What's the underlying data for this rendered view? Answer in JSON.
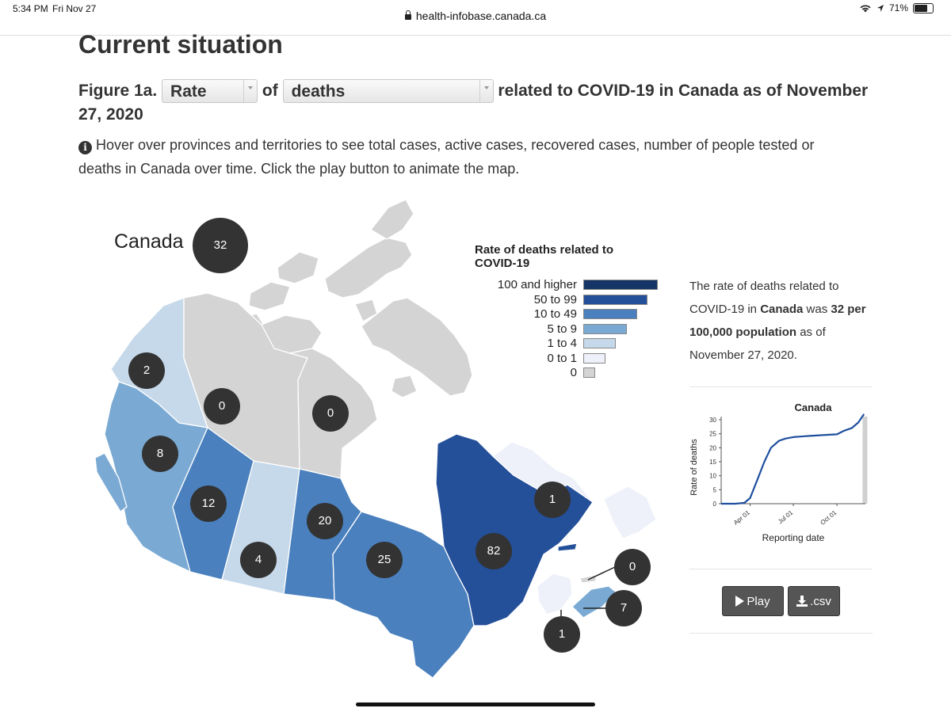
{
  "status": {
    "time": "5:34 PM",
    "date": "Fri Nov 27",
    "battery": "71%"
  },
  "browser": {
    "url": "health-infobase.canada.ca"
  },
  "page": {
    "title": "Current situation",
    "figure_prefix": "Figure 1a.",
    "rate_select": "Rate",
    "of_text": "of",
    "metric_select": "deaths",
    "figure_suffix": "related to COVID-19 in Canada as of November 27, 2020",
    "info_text": "Hover over provinces and territories to see total cases, active cases, recovered cases, number of people tested or deaths in Canada over time. Click the play button to animate the map."
  },
  "map": {
    "national": {
      "label": "Canada",
      "value": "32"
    },
    "regions": [
      {
        "name": "Yukon",
        "value": "2",
        "color": "#c6d9ea"
      },
      {
        "name": "Northwest Territories",
        "value": "0",
        "color": "#d4d4d4"
      },
      {
        "name": "Nunavut",
        "value": "0",
        "color": "#d4d4d4"
      },
      {
        "name": "British Columbia",
        "value": "8",
        "color": "#7aaad3"
      },
      {
        "name": "Alberta",
        "value": "12",
        "color": "#4a80be"
      },
      {
        "name": "Saskatchewan",
        "value": "4",
        "color": "#c6d9ea"
      },
      {
        "name": "Manitoba",
        "value": "20",
        "color": "#4a80be"
      },
      {
        "name": "Ontario",
        "value": "25",
        "color": "#4a80be"
      },
      {
        "name": "Quebec",
        "value": "82",
        "color": "#244f99"
      },
      {
        "name": "Newfoundland and Labrador",
        "value": "1",
        "color": "#eef0fa"
      },
      {
        "name": "Prince Edward Island",
        "value": "0",
        "color": "#d4d4d4"
      },
      {
        "name": "Nova Scotia",
        "value": "7",
        "color": "#7aaad3"
      },
      {
        "name": "New Brunswick",
        "value": "1",
        "color": "#eef0fa"
      }
    ]
  },
  "legend": {
    "title": "Rate of deaths related to COVID-19",
    "items": [
      {
        "label": "100 and higher",
        "color": "#143566",
        "fraction": 1.0
      },
      {
        "label": "50 to 99",
        "color": "#244f99",
        "fraction": 0.86
      },
      {
        "label": "10 to 49",
        "color": "#4a80be",
        "fraction": 0.72
      },
      {
        "label": "5 to 9",
        "color": "#7aaad3",
        "fraction": 0.58
      },
      {
        "label": "1 to 4",
        "color": "#c6d9ea",
        "fraction": 0.44
      },
      {
        "label": "0 to 1",
        "color": "#eef0fa",
        "fraction": 0.3
      },
      {
        "label": "0",
        "color": "#d4d4d4",
        "fraction": 0.16
      }
    ]
  },
  "description": {
    "part1": "The rate of deaths related to COVID-19 in ",
    "place": "Canada",
    "part2": " was ",
    "value": "32 per 100,000 population",
    "part3": " as of November 27, 2020."
  },
  "chart_data": {
    "type": "line",
    "title": "Canada",
    "xlabel": "Reporting date",
    "ylabel": "Rate of deaths",
    "ylim": [
      0,
      30
    ],
    "yticks": [
      0,
      5,
      10,
      15,
      20,
      25,
      30
    ],
    "xticks": [
      "Apr 01",
      "Jul 01",
      "Oct 01"
    ],
    "series": [
      {
        "color": "#1f4f9f",
        "x": [
          "2020-01-31",
          "2020-03-01",
          "2020-03-20",
          "2020-04-01",
          "2020-04-15",
          "2020-05-01",
          "2020-05-15",
          "2020-06-01",
          "2020-06-15",
          "2020-07-01",
          "2020-08-01",
          "2020-09-01",
          "2020-10-01",
          "2020-10-15",
          "2020-11-01",
          "2020-11-15",
          "2020-11-27"
        ],
        "y": [
          0,
          0,
          0.3,
          2,
          8,
          15,
          20,
          22.5,
          23.3,
          23.8,
          24.2,
          24.5,
          24.8,
          26,
          27,
          29,
          32
        ]
      }
    ]
  },
  "buttons": {
    "play": "Play",
    "csv": ".csv"
  }
}
